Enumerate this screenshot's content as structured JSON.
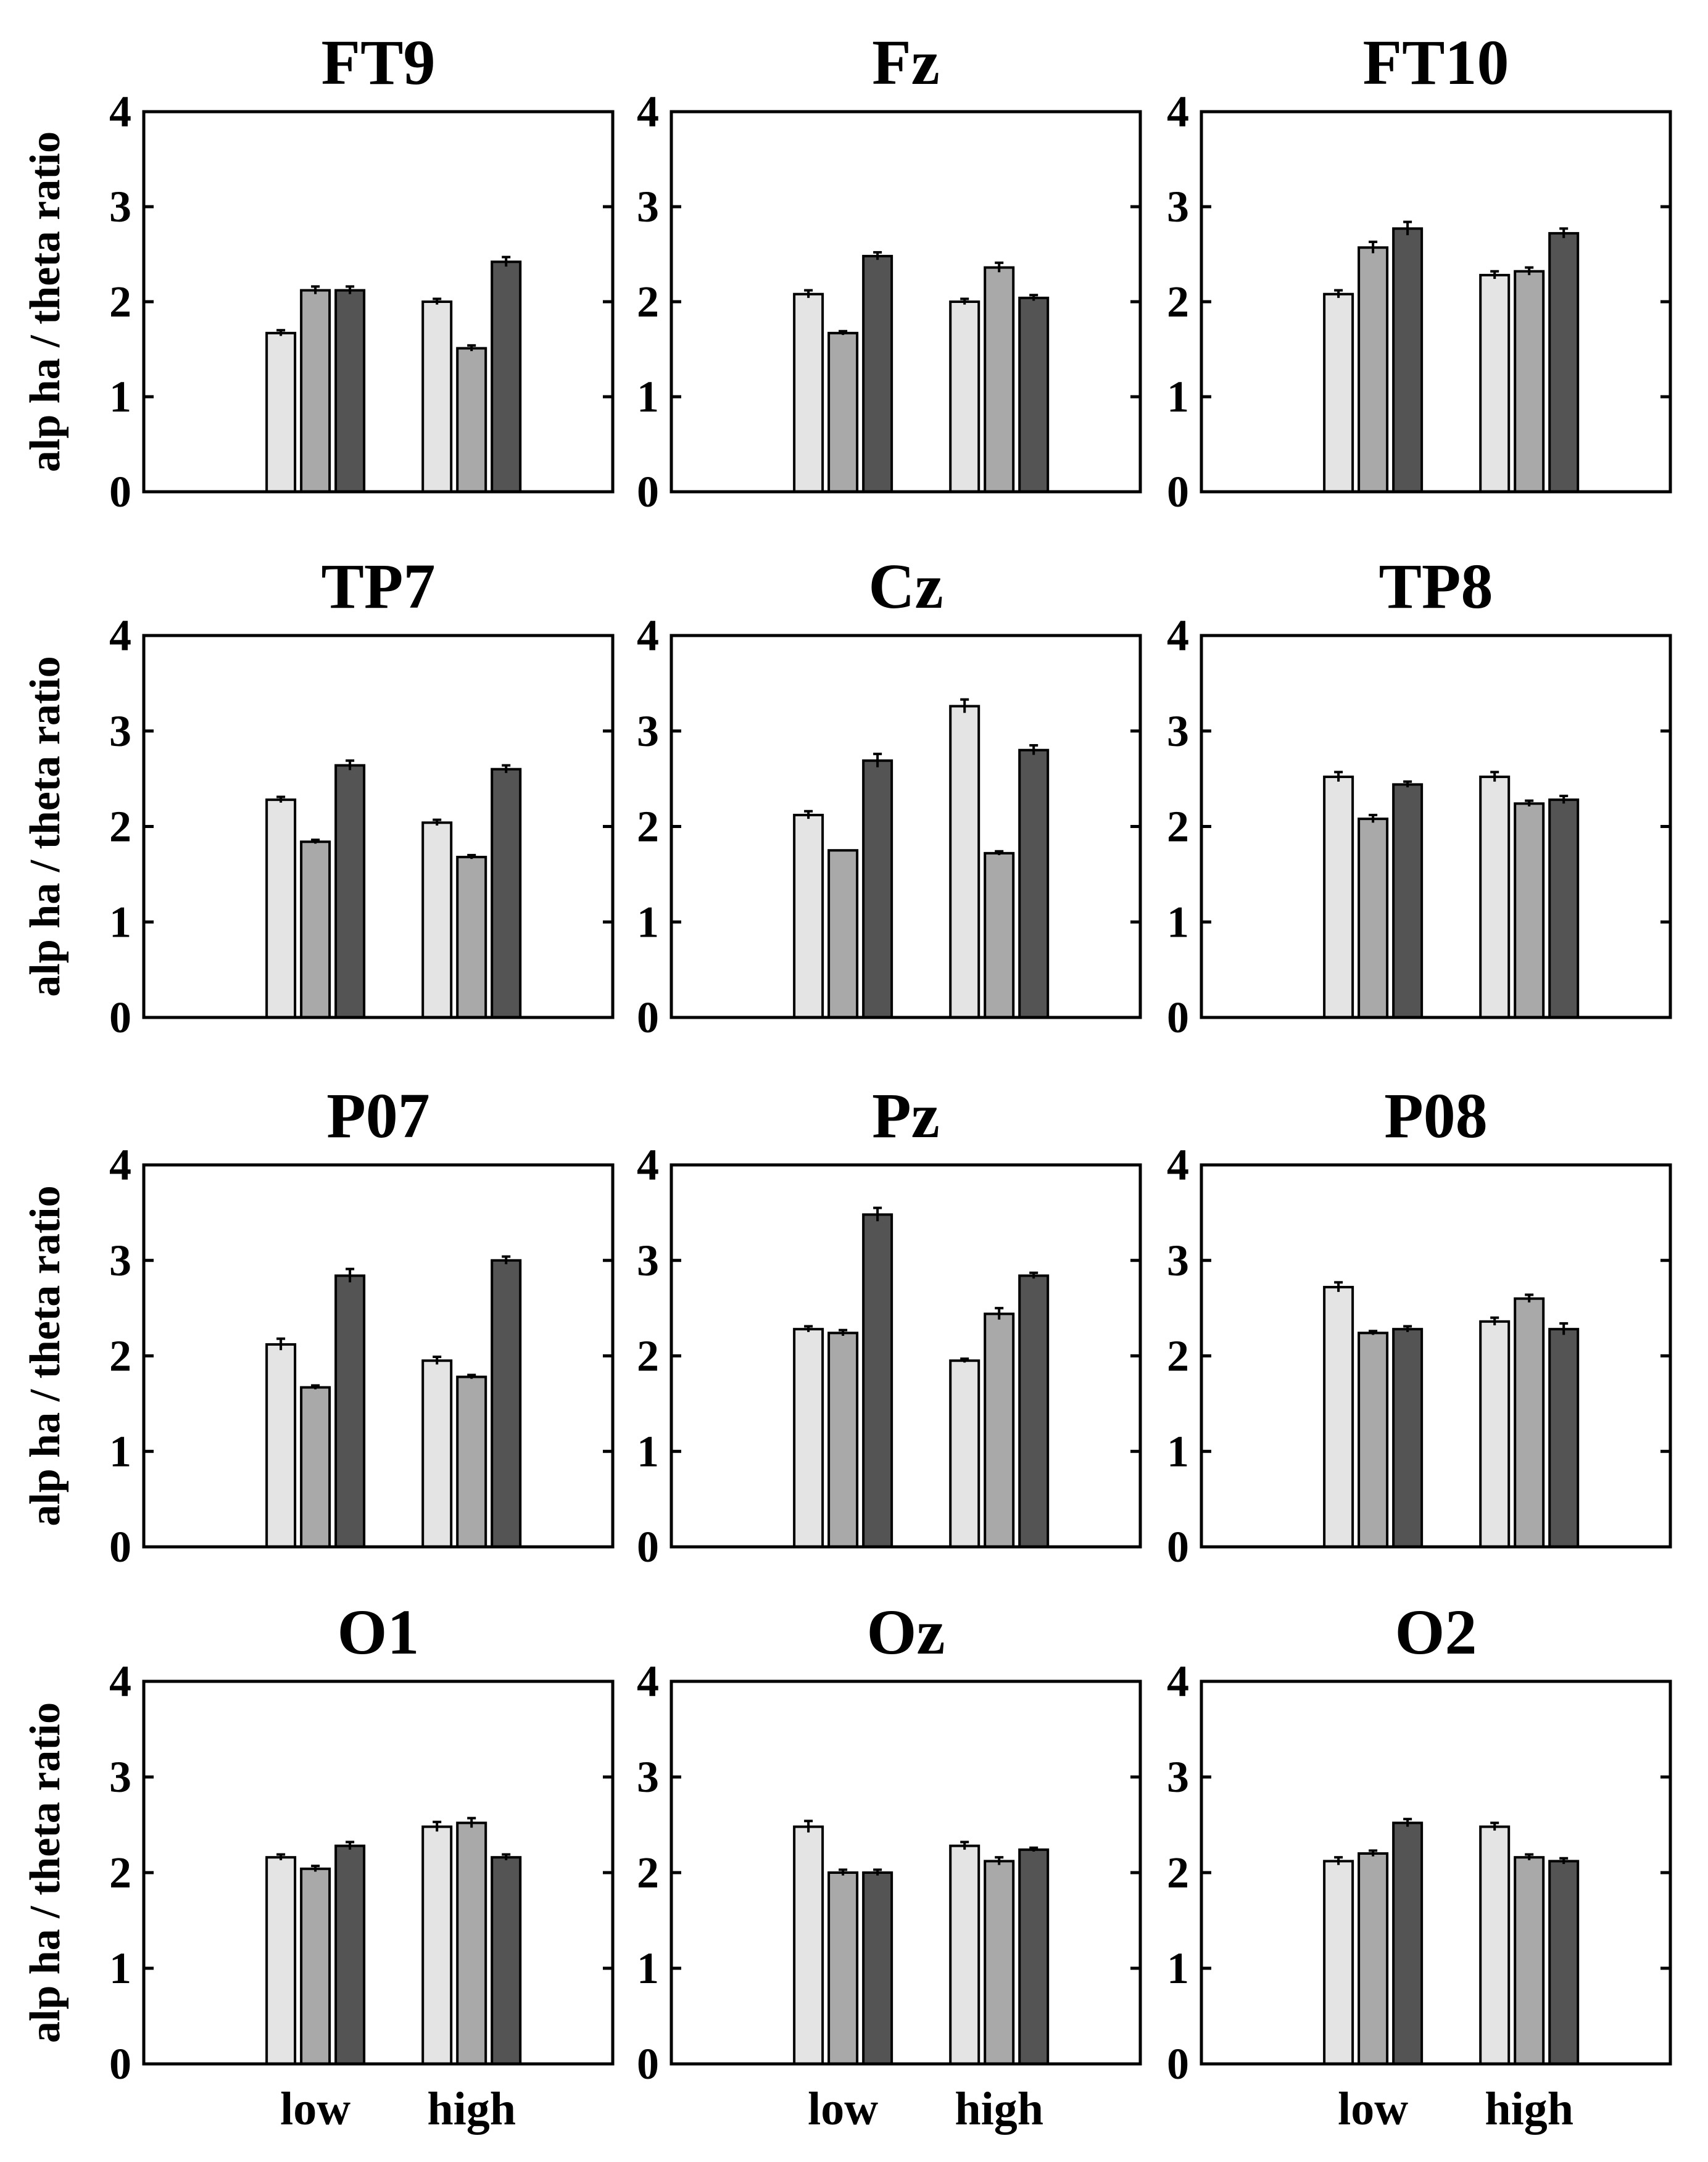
{
  "colors": {
    "bars": [
      "#e4e4e4",
      "#a9a9a9",
      "#545454"
    ]
  },
  "ylabel": "alp ha / theta ratio",
  "chart_data": [
    {
      "type": "bar",
      "title": "FT9",
      "categories": [
        "low",
        "high"
      ],
      "ylim": [
        0,
        4
      ],
      "yticks": [
        0,
        1,
        2,
        3,
        4
      ],
      "series": [
        {
          "values": [
            1.67,
            2.0
          ],
          "errors": [
            0.03,
            0.03
          ]
        },
        {
          "values": [
            2.12,
            1.51
          ],
          "errors": [
            0.04,
            0.03
          ]
        },
        {
          "values": [
            2.12,
            2.42
          ],
          "errors": [
            0.04,
            0.05
          ]
        }
      ]
    },
    {
      "type": "bar",
      "title": "Fz",
      "categories": [
        "low",
        "high"
      ],
      "ylim": [
        0,
        4
      ],
      "yticks": [
        0,
        1,
        2,
        3,
        4
      ],
      "series": [
        {
          "values": [
            2.08,
            2.0
          ],
          "errors": [
            0.04,
            0.03
          ]
        },
        {
          "values": [
            1.67,
            2.36
          ],
          "errors": [
            0.02,
            0.05
          ]
        },
        {
          "values": [
            2.48,
            2.04
          ],
          "errors": [
            0.04,
            0.03
          ]
        }
      ]
    },
    {
      "type": "bar",
      "title": "FT10",
      "categories": [
        "low",
        "high"
      ],
      "ylim": [
        0,
        4
      ],
      "yticks": [
        0,
        1,
        2,
        3,
        4
      ],
      "series": [
        {
          "values": [
            2.08,
            2.28
          ],
          "errors": [
            0.04,
            0.04
          ]
        },
        {
          "values": [
            2.57,
            2.32
          ],
          "errors": [
            0.06,
            0.04
          ]
        },
        {
          "values": [
            2.77,
            2.72
          ],
          "errors": [
            0.07,
            0.05
          ]
        }
      ]
    },
    {
      "type": "bar",
      "title": "TP7",
      "categories": [
        "low",
        "high"
      ],
      "ylim": [
        0,
        4
      ],
      "yticks": [
        0,
        1,
        2,
        3,
        4
      ],
      "series": [
        {
          "values": [
            2.28,
            2.04
          ],
          "errors": [
            0.03,
            0.03
          ]
        },
        {
          "values": [
            1.84,
            1.68
          ],
          "errors": [
            0.02,
            0.02
          ]
        },
        {
          "values": [
            2.64,
            2.6
          ],
          "errors": [
            0.05,
            0.04
          ]
        }
      ]
    },
    {
      "type": "bar",
      "title": "Cz",
      "categories": [
        "low",
        "high"
      ],
      "ylim": [
        0,
        4
      ],
      "yticks": [
        0,
        1,
        2,
        3,
        4
      ],
      "series": [
        {
          "values": [
            2.12,
            3.26
          ],
          "errors": [
            0.04,
            0.07
          ]
        },
        {
          "values": [
            1.75,
            1.72
          ],
          "errors": [
            0,
            0.02
          ]
        },
        {
          "values": [
            2.69,
            2.8
          ],
          "errors": [
            0.07,
            0.05
          ]
        }
      ]
    },
    {
      "type": "bar",
      "title": "TP8",
      "categories": [
        "low",
        "high"
      ],
      "ylim": [
        0,
        4
      ],
      "yticks": [
        0,
        1,
        2,
        3,
        4
      ],
      "series": [
        {
          "values": [
            2.52,
            2.52
          ],
          "errors": [
            0.05,
            0.05
          ]
        },
        {
          "values": [
            2.08,
            2.24
          ],
          "errors": [
            0.04,
            0.03
          ]
        },
        {
          "values": [
            2.44,
            2.28
          ],
          "errors": [
            0.03,
            0.04
          ]
        }
      ]
    },
    {
      "type": "bar",
      "title": "P07",
      "categories": [
        "low",
        "high"
      ],
      "ylim": [
        0,
        4
      ],
      "yticks": [
        0,
        1,
        2,
        3,
        4
      ],
      "series": [
        {
          "values": [
            2.12,
            1.95
          ],
          "errors": [
            0.06,
            0.04
          ]
        },
        {
          "values": [
            1.67,
            1.78
          ],
          "errors": [
            0.02,
            0.02
          ]
        },
        {
          "values": [
            2.84,
            3.0
          ],
          "errors": [
            0.07,
            0.04
          ]
        }
      ]
    },
    {
      "type": "bar",
      "title": "Pz",
      "categories": [
        "low",
        "high"
      ],
      "ylim": [
        0,
        4
      ],
      "yticks": [
        0,
        1,
        2,
        3,
        4
      ],
      "series": [
        {
          "values": [
            2.28,
            1.95
          ],
          "errors": [
            0.03,
            0.02
          ]
        },
        {
          "values": [
            2.24,
            2.44
          ],
          "errors": [
            0.03,
            0.06
          ]
        },
        {
          "values": [
            3.48,
            2.84
          ],
          "errors": [
            0.07,
            0.03
          ]
        }
      ]
    },
    {
      "type": "bar",
      "title": "P08",
      "categories": [
        "low",
        "high"
      ],
      "ylim": [
        0,
        4
      ],
      "yticks": [
        0,
        1,
        2,
        3,
        4
      ],
      "series": [
        {
          "values": [
            2.72,
            2.36
          ],
          "errors": [
            0.05,
            0.04
          ]
        },
        {
          "values": [
            2.24,
            2.6
          ],
          "errors": [
            0.02,
            0.04
          ]
        },
        {
          "values": [
            2.28,
            2.28
          ],
          "errors": [
            0.03,
            0.06
          ]
        }
      ]
    },
    {
      "type": "bar",
      "title": "O1",
      "categories": [
        "low",
        "high"
      ],
      "ylim": [
        0,
        4
      ],
      "yticks": [
        0,
        1,
        2,
        3,
        4
      ],
      "series": [
        {
          "values": [
            2.16,
            2.48
          ],
          "errors": [
            0.03,
            0.05
          ]
        },
        {
          "values": [
            2.04,
            2.52
          ],
          "errors": [
            0.03,
            0.05
          ]
        },
        {
          "values": [
            2.28,
            2.16
          ],
          "errors": [
            0.04,
            0.03
          ]
        }
      ]
    },
    {
      "type": "bar",
      "title": "Oz",
      "categories": [
        "low",
        "high"
      ],
      "ylim": [
        0,
        4
      ],
      "yticks": [
        0,
        1,
        2,
        3,
        4
      ],
      "series": [
        {
          "values": [
            2.48,
            2.28
          ],
          "errors": [
            0.06,
            0.04
          ]
        },
        {
          "values": [
            2.0,
            2.12
          ],
          "errors": [
            0.03,
            0.04
          ]
        },
        {
          "values": [
            2.0,
            2.24
          ],
          "errors": [
            0.03,
            0.02
          ]
        }
      ]
    },
    {
      "type": "bar",
      "title": "O2",
      "categories": [
        "low",
        "high"
      ],
      "ylim": [
        0,
        4
      ],
      "yticks": [
        0,
        1,
        2,
        3,
        4
      ],
      "series": [
        {
          "values": [
            2.12,
            2.48
          ],
          "errors": [
            0.04,
            0.04
          ]
        },
        {
          "values": [
            2.2,
            2.16
          ],
          "errors": [
            0.03,
            0.03
          ]
        },
        {
          "values": [
            2.52,
            2.12
          ],
          "errors": [
            0.04,
            0.03
          ]
        }
      ]
    }
  ]
}
